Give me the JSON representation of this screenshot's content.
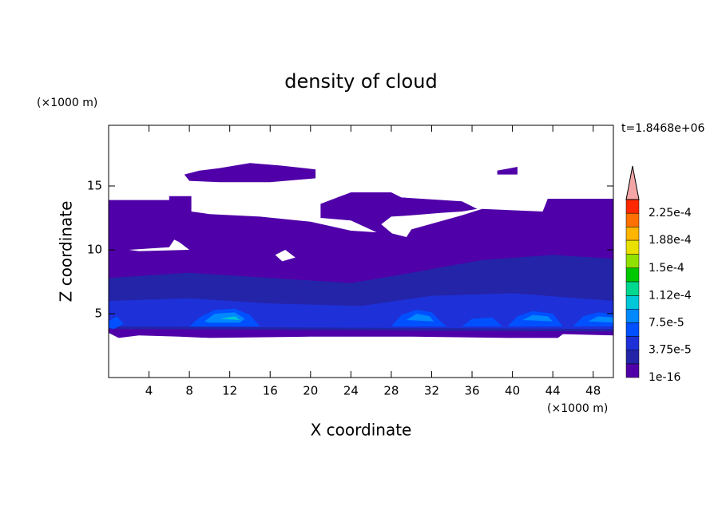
{
  "chart_data": {
    "type": "contour",
    "title": "density of cloud",
    "time_label": "t=1.8468e+06",
    "x_label": "X coordinate",
    "y_label": "Z coordinate",
    "x_unit": "(×1000 m)",
    "y_unit": "(×1000 m)",
    "xlim": [
      0,
      50
    ],
    "ylim": [
      0,
      19.75
    ],
    "xticks": [
      4,
      8,
      12,
      16,
      20,
      24,
      28,
      32,
      36,
      40,
      44,
      48
    ],
    "yticks": [
      5,
      10,
      15
    ],
    "colorbar": {
      "levels": [
        1e-16,
        1.875e-05,
        {
          "value": 3.75e-05,
          "label": "3.75e-5"
        },
        5.625e-05,
        {
          "value": 7.5e-05,
          "label": "7.5e-5"
        },
        9.375e-05,
        {
          "value": 0.000112,
          "label": "1.12e-4"
        },
        0.00013125,
        {
          "value": 0.00015,
          "label": "1.5e-4"
        },
        0.00016875,
        {
          "value": 0.000188,
          "label": "1.88e-4"
        },
        0.00020625,
        {
          "value": 0.000225,
          "label": "2.25e-4"
        },
        0.00024375
      ],
      "colors": [
        "#5000a8",
        "#2424a8",
        "#1e30d8",
        "#0050ff",
        "#0088ff",
        "#00c8d8",
        "#00d890",
        "#00c800",
        "#90e000",
        "#e8e000",
        "#ffb400",
        "#ff7000",
        "#ff2800"
      ],
      "extend_color": "#f4a6a6"
    },
    "regions": [
      {
        "level": 1e-16,
        "rings": [
          [
            [
              0,
              13.9
            ],
            [
              6,
              13.9
            ],
            [
              6,
              14.2
            ],
            [
              8.2,
              14.2
            ],
            [
              8.2,
              13.0
            ],
            [
              10,
              12.8
            ],
            [
              15,
              12.6
            ],
            [
              20,
              12.2
            ],
            [
              24,
              11.5
            ],
            [
              28,
              11.3
            ],
            [
              29.5,
              11.0
            ],
            [
              30,
              11.6
            ],
            [
              35,
              12.7
            ],
            [
              37,
              13.2
            ],
            [
              43,
              13.0
            ],
            [
              43.5,
              14.0
            ],
            [
              50,
              14.0
            ],
            [
              50,
              3.3
            ],
            [
              45,
              3.4
            ],
            [
              44.5,
              3.1
            ],
            [
              40,
              3.1
            ],
            [
              30,
              3.2
            ],
            [
              20,
              3.2
            ],
            [
              10,
              3.1
            ],
            [
              7,
              3.2
            ],
            [
              3,
              3.3
            ],
            [
              1,
              3.1
            ],
            [
              0,
              3.5
            ]
          ],
          [
            [
              2,
              10.0
            ],
            [
              6,
              10.2
            ],
            [
              6.5,
              10.8
            ],
            [
              7,
              10.6
            ],
            [
              8,
              10.0
            ],
            [
              3,
              9.9
            ]
          ],
          [
            [
              16.5,
              9.6
            ],
            [
              17.5,
              10.0
            ],
            [
              18.5,
              9.4
            ],
            [
              17.2,
              9.1
            ]
          ]
        ]
      },
      {
        "level": 1e-16,
        "rings": [
          [
            [
              7.5,
              15.9
            ],
            [
              9,
              16.2
            ],
            [
              11,
              16.4
            ],
            [
              14,
              16.8
            ],
            [
              17,
              16.6
            ],
            [
              20.5,
              16.3
            ],
            [
              20.5,
              15.6
            ],
            [
              16,
              15.3
            ],
            [
              11,
              15.3
            ],
            [
              8,
              15.4
            ]
          ]
        ]
      },
      {
        "level": 1e-16,
        "rings": [
          [
            [
              21,
              13.6
            ],
            [
              23,
              14.2
            ],
            [
              24,
              14.5
            ],
            [
              28,
              14.5
            ],
            [
              29,
              14.1
            ],
            [
              35,
              13.8
            ],
            [
              36.5,
              13.2
            ],
            [
              35,
              13.0
            ],
            [
              33,
              12.9
            ],
            [
              30,
              12.7
            ],
            [
              28,
              12.6
            ],
            [
              27,
              12.0
            ],
            [
              28.5,
              11.0
            ],
            [
              27,
              11.2
            ],
            [
              24,
              12.3
            ],
            [
              21,
              12.5
            ]
          ]
        ]
      },
      {
        "level": 1e-16,
        "rings": [
          [
            [
              38.5,
              16.2
            ],
            [
              40.5,
              16.5
            ],
            [
              40.5,
              15.9
            ],
            [
              38.5,
              15.9
            ]
          ]
        ]
      },
      {
        "level": 1.875e-05,
        "rings": [
          [
            [
              0,
              7.8
            ],
            [
              8,
              8.2
            ],
            [
              16,
              7.8
            ],
            [
              24,
              7.4
            ],
            [
              30,
              8.2
            ],
            [
              37,
              9.2
            ],
            [
              44,
              9.6
            ],
            [
              50,
              9.3
            ],
            [
              50,
              3.6
            ],
            [
              0,
              3.8
            ]
          ]
        ]
      },
      {
        "level": {
          "value": 3.75e-05,
          "label": "3.75e-5"
        },
        "rings": [
          [
            [
              0,
              6.0
            ],
            [
              8,
              6.2
            ],
            [
              16,
              5.8
            ],
            [
              25,
              5.6
            ],
            [
              32,
              6.4
            ],
            [
              40,
              6.6
            ],
            [
              50,
              6.0
            ],
            [
              50,
              3.8
            ],
            [
              0,
              4.0
            ]
          ]
        ]
      },
      {
        "level": 5.625e-05,
        "rings": [
          [
            [
              8,
              4.0
            ],
            [
              9,
              4.7
            ],
            [
              10.5,
              5.3
            ],
            [
              12.5,
              5.4
            ],
            [
              14,
              4.9
            ],
            [
              15,
              4.0
            ]
          ],
          [
            [
              28,
              4.0
            ],
            [
              29,
              4.9
            ],
            [
              30.5,
              5.3
            ],
            [
              32,
              5.1
            ],
            [
              33,
              4.3
            ],
            [
              33.5,
              4.0
            ]
          ],
          [
            [
              39.5,
              4.0
            ],
            [
              40.5,
              4.8
            ],
            [
              42,
              5.2
            ],
            [
              44,
              5.0
            ],
            [
              45,
              4.0
            ]
          ],
          [
            [
              46,
              4.0
            ],
            [
              47,
              4.8
            ],
            [
              48.5,
              5.1
            ],
            [
              50,
              5.0
            ],
            [
              50,
              4.0
            ]
          ],
          [
            [
              0,
              4.4
            ],
            [
              0.8,
              4.8
            ],
            [
              1.5,
              4.2
            ],
            [
              0.5,
              3.8
            ],
            [
              0,
              3.9
            ]
          ],
          [
            [
              35,
              4.0
            ],
            [
              36,
              4.6
            ],
            [
              38,
              4.7
            ],
            [
              39,
              4.0
            ]
          ]
        ]
      },
      {
        "level": {
          "value": 7.5e-05,
          "label": "7.5e-5"
        },
        "rings": [
          [
            [
              9.5,
              4.4
            ],
            [
              10.5,
              5.0
            ],
            [
              12.5,
              5.1
            ],
            [
              13.5,
              4.6
            ],
            [
              13,
              4.3
            ],
            [
              10,
              4.3
            ]
          ],
          [
            [
              29.5,
              4.5
            ],
            [
              30.5,
              5.0
            ],
            [
              31.8,
              4.8
            ],
            [
              32.2,
              4.4
            ]
          ],
          [
            [
              41,
              4.5
            ],
            [
              42,
              4.9
            ],
            [
              43.5,
              4.8
            ],
            [
              44,
              4.4
            ]
          ],
          [
            [
              47.5,
              4.4
            ],
            [
              48.5,
              4.8
            ],
            [
              50,
              4.7
            ],
            [
              50,
              4.3
            ]
          ]
        ]
      },
      {
        "level": 9.375e-05,
        "rings": [
          [
            [
              11,
              4.6
            ],
            [
              12.5,
              4.8
            ],
            [
              13,
              4.5
            ]
          ]
        ]
      }
    ]
  }
}
